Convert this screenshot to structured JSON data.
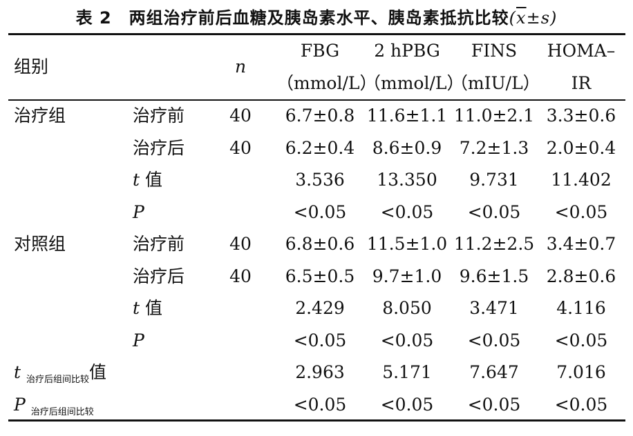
{
  "caption": {
    "prefix": "表 2　两组治疗前后血糖及胰岛素水平、胰岛素抵抗比较",
    "open": "(",
    "xbar": "x",
    "pm": "±",
    "s": "s",
    "close": ")"
  },
  "header": {
    "group": "组别",
    "n": "n",
    "cols": [
      {
        "line1": "FBG",
        "line2": "（mmol/L）"
      },
      {
        "line1": "2 hPBG",
        "line2": "（mmol/L）"
      },
      {
        "line1": "FINS",
        "line2": "（mIU/L）"
      },
      {
        "line1": "HOMA–",
        "line2": "IR"
      }
    ]
  },
  "rows": [
    {
      "group": "治疗组",
      "stage": "治疗前",
      "n": "40",
      "v": [
        "6.7±0.8",
        "11.6±1.1",
        "11.0±2.1",
        "3.3±0.6"
      ]
    },
    {
      "group": "",
      "stage": "治疗后",
      "n": "40",
      "v": [
        "6.2±0.4",
        "8.6±0.9",
        "7.2±1.3",
        "2.0±0.4"
      ]
    },
    {
      "group": "",
      "stage_it": "t",
      "stage": " 值",
      "n": "",
      "v": [
        "3.536",
        "13.350",
        "9.731",
        "11.402"
      ]
    },
    {
      "group": "",
      "stage_it": "P",
      "stage": "",
      "n": "",
      "v": [
        "<0.05",
        "<0.05",
        "<0.05",
        "<0.05"
      ]
    },
    {
      "group": "对照组",
      "stage": "治疗前",
      "n": "40",
      "v": [
        "6.8±0.6",
        "11.5±1.0",
        "11.2±2.5",
        "3.4±0.7"
      ]
    },
    {
      "group": "",
      "stage": "治疗后",
      "n": "40",
      "v": [
        "6.5±0.5",
        "9.7±1.0",
        "9.6±1.5",
        "2.8±0.6"
      ]
    },
    {
      "group": "",
      "stage_it": "t",
      "stage": " 值",
      "n": "",
      "v": [
        "2.429",
        "8.050",
        "3.471",
        "4.116"
      ]
    },
    {
      "group": "",
      "stage_it": "P",
      "stage": "",
      "n": "",
      "v": [
        "<0.05",
        "<0.05",
        "<0.05",
        "<0.05"
      ]
    }
  ],
  "footer": [
    {
      "sym": "t",
      "sub": "治疗后组间比较",
      "suffix": "值",
      "v": [
        "2.963",
        "5.171",
        "7.647",
        "7.016"
      ]
    },
    {
      "sym": "P",
      "sub": "治疗后组间比较",
      "suffix": "",
      "v": [
        "<0.05",
        "<0.05",
        "<0.05",
        "<0.05"
      ]
    }
  ]
}
